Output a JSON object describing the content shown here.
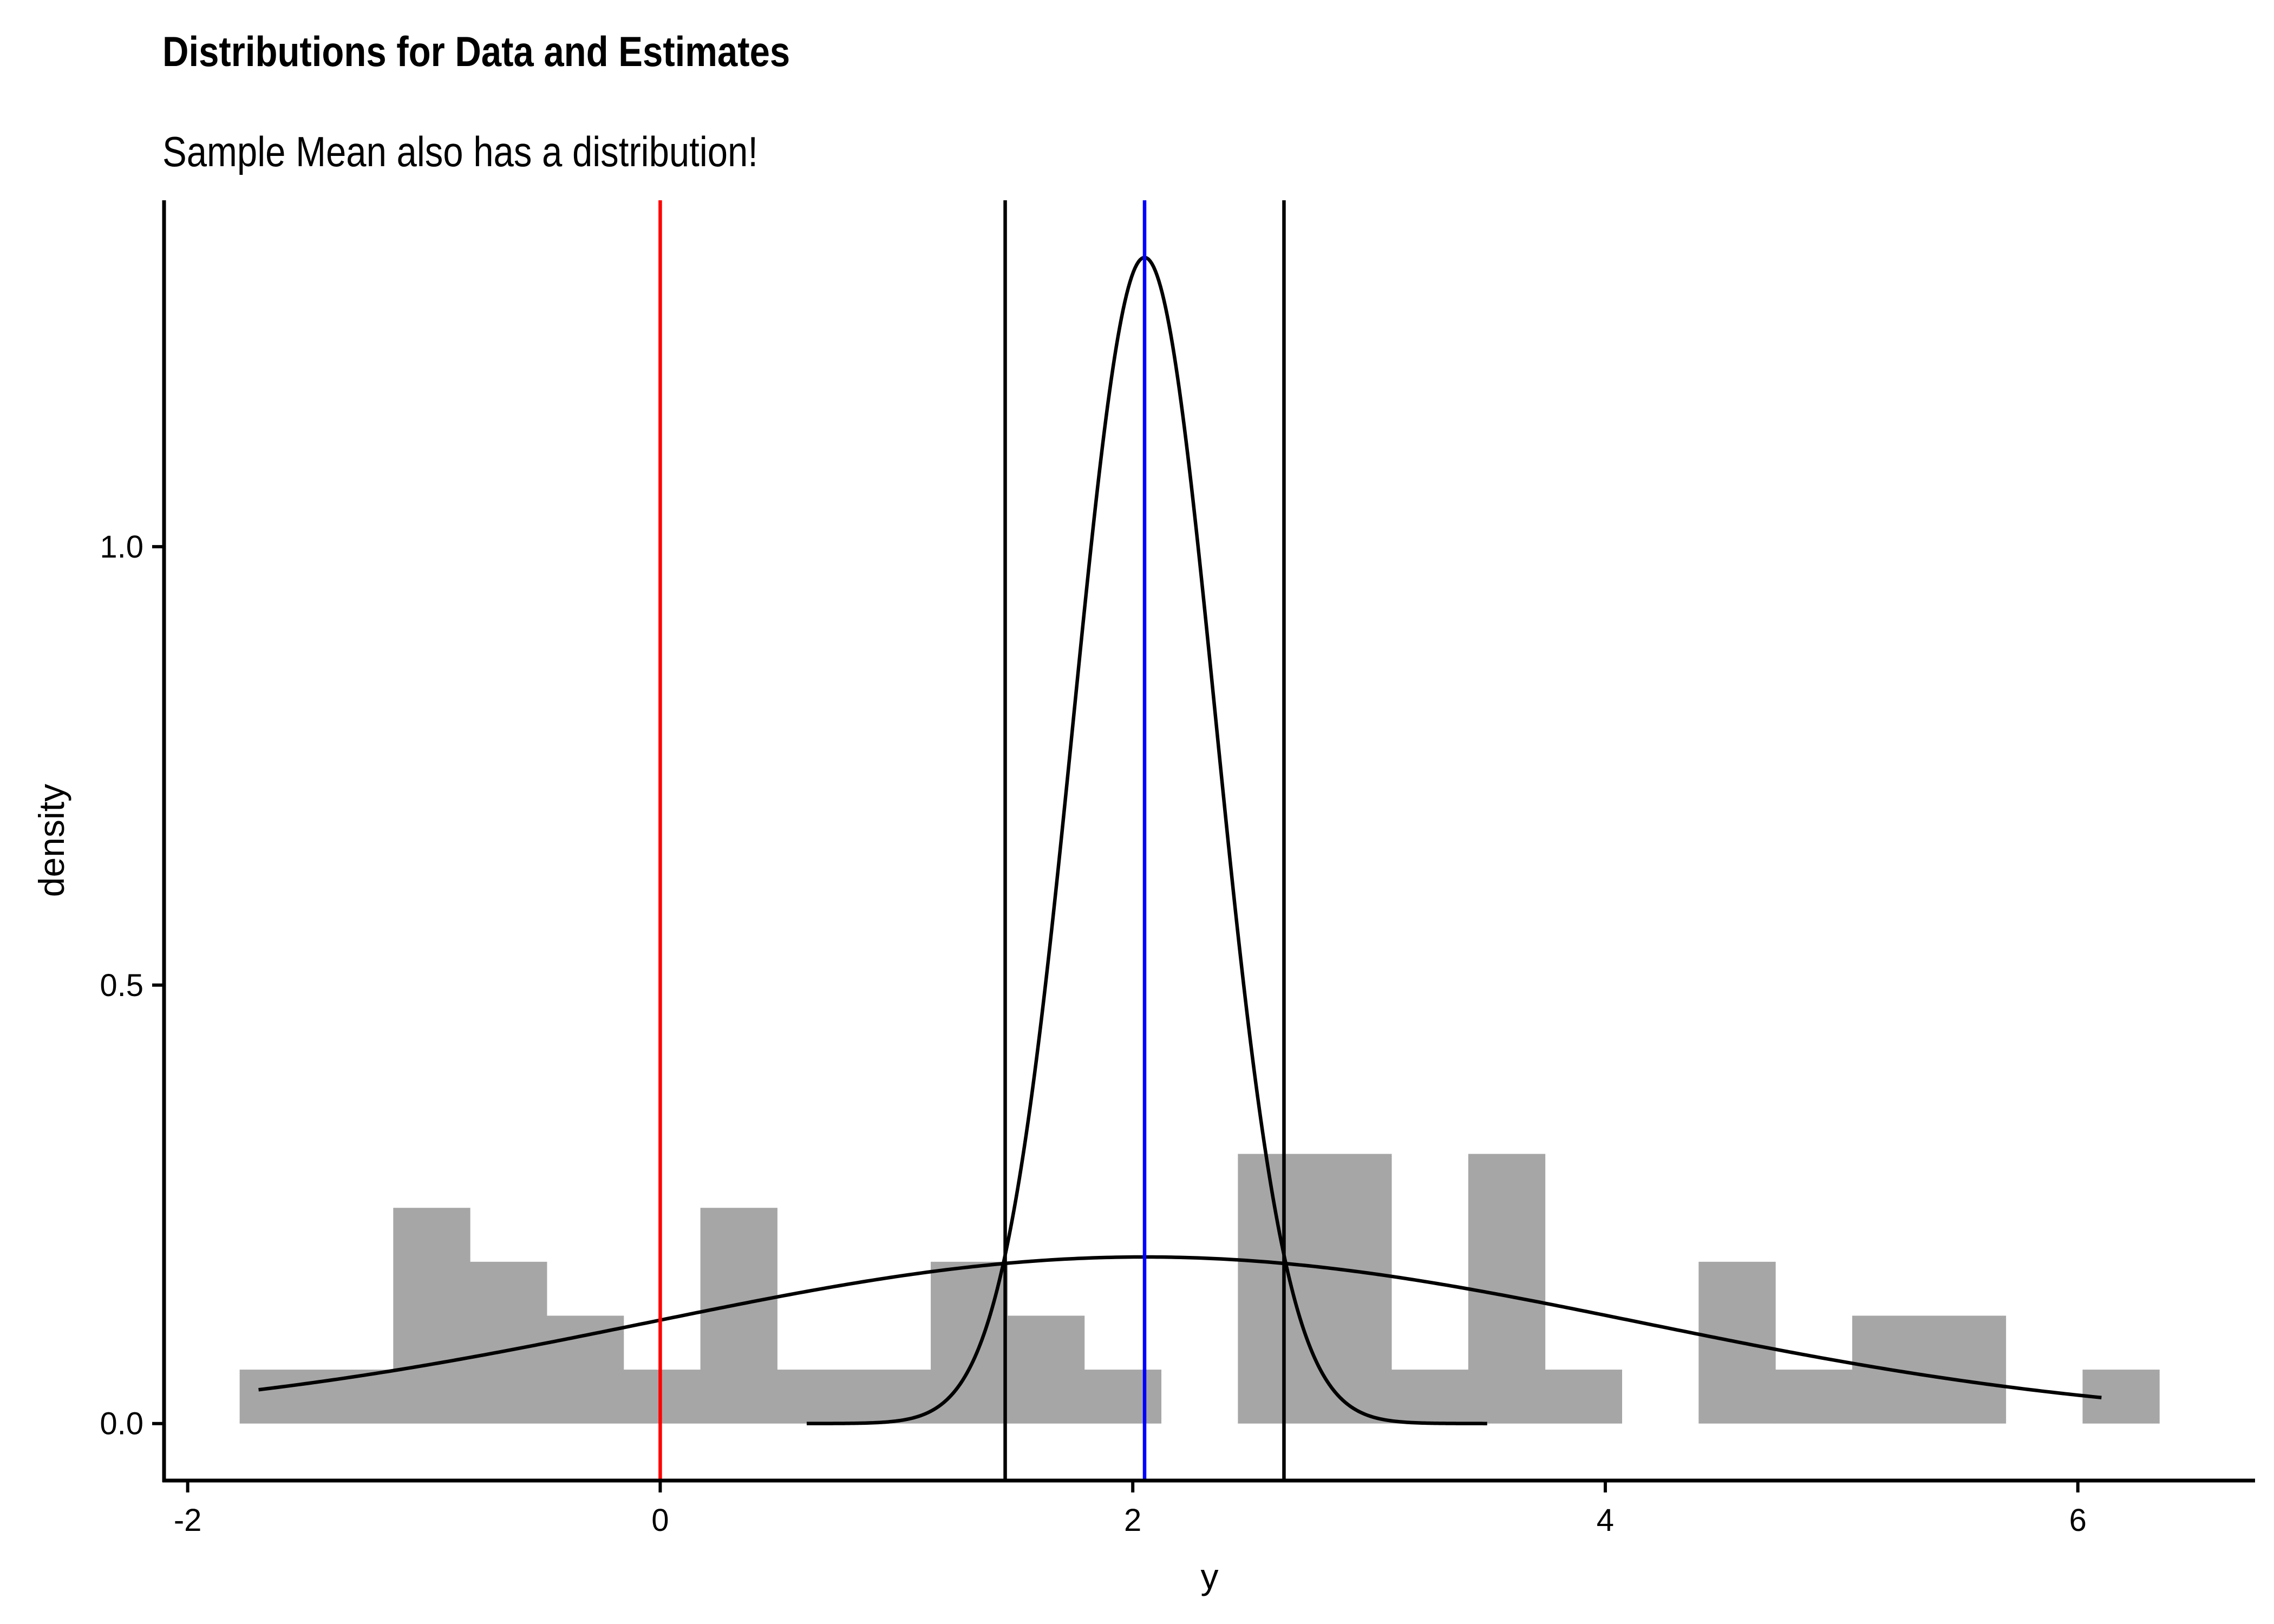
{
  "chart_data": {
    "type": "histogram",
    "title": "Distributions for Data and Estimates",
    "subtitle": "Sample Mean also has a distribution!",
    "xlabel": "y",
    "ylabel": "density",
    "xlim": [
      -2.1,
      6.75
    ],
    "ylim": [
      -0.065,
      1.395
    ],
    "x_ticks": [
      -2,
      0,
      2,
      4,
      6
    ],
    "y_ticks": [
      0.0,
      0.5,
      1.0
    ],
    "x_tick_labels": [
      "-2",
      "0",
      "2",
      "4",
      "6"
    ],
    "y_tick_labels": [
      "0.0",
      "0.5",
      "1.0"
    ],
    "grid": false,
    "legend": "none",
    "histogram": {
      "color": "#a6a6a6",
      "bin_width": 0.325,
      "bins": [
        {
          "x0": -1.78,
          "x1": -1.455,
          "density": 0.0615
        },
        {
          "x0": -1.455,
          "x1": -1.13,
          "density": 0.0615
        },
        {
          "x0": -1.13,
          "x1": -0.805,
          "density": 0.246
        },
        {
          "x0": -0.805,
          "x1": -0.48,
          "density": 0.1845
        },
        {
          "x0": -0.48,
          "x1": -0.155,
          "density": 0.123
        },
        {
          "x0": -0.155,
          "x1": 0.17,
          "density": 0.0615
        },
        {
          "x0": 0.17,
          "x1": 0.495,
          "density": 0.246
        },
        {
          "x0": 0.495,
          "x1": 0.82,
          "density": 0.0615
        },
        {
          "x0": 0.82,
          "x1": 1.145,
          "density": 0.0615
        },
        {
          "x0": 1.145,
          "x1": 1.47,
          "density": 0.1845
        },
        {
          "x0": 1.47,
          "x1": 1.795,
          "density": 0.123
        },
        {
          "x0": 1.795,
          "x1": 2.12,
          "density": 0.0615
        },
        {
          "x0": 2.12,
          "x1": 2.445,
          "density": 0.0
        },
        {
          "x0": 2.445,
          "x1": 2.77,
          "density": 0.3075
        },
        {
          "x0": 2.77,
          "x1": 3.095,
          "density": 0.3075
        },
        {
          "x0": 3.095,
          "x1": 3.42,
          "density": 0.0615
        },
        {
          "x0": 3.42,
          "x1": 3.745,
          "density": 0.3075
        },
        {
          "x0": 3.745,
          "x1": 4.07,
          "density": 0.0615
        },
        {
          "x0": 4.07,
          "x1": 4.395,
          "density": 0.0
        },
        {
          "x0": 4.395,
          "x1": 4.72,
          "density": 0.1845
        },
        {
          "x0": 4.72,
          "x1": 5.045,
          "density": 0.0615
        },
        {
          "x0": 5.045,
          "x1": 5.37,
          "density": 0.123
        },
        {
          "x0": 5.37,
          "x1": 5.695,
          "density": 0.123
        },
        {
          "x0": 5.695,
          "x1": 6.02,
          "density": 0.0
        },
        {
          "x0": 6.02,
          "x1": 6.345,
          "density": 0.0615
        }
      ]
    },
    "curves": [
      {
        "distribution": "normal",
        "mean": 2.05,
        "sd": 2.1,
        "x_range": [
          -1.7,
          6.1
        ],
        "color": "#000000"
      },
      {
        "distribution": "normal",
        "mean": 2.05,
        "sd": 0.3,
        "x_range": [
          0.62,
          3.5
        ],
        "color": "#000000"
      }
    ],
    "vlines": [
      {
        "x": 0.0,
        "color": "#ff0000"
      },
      {
        "x": 1.46,
        "color": "#000000"
      },
      {
        "x": 2.05,
        "color": "#0000ff"
      },
      {
        "x": 2.64,
        "color": "#000000"
      }
    ]
  }
}
